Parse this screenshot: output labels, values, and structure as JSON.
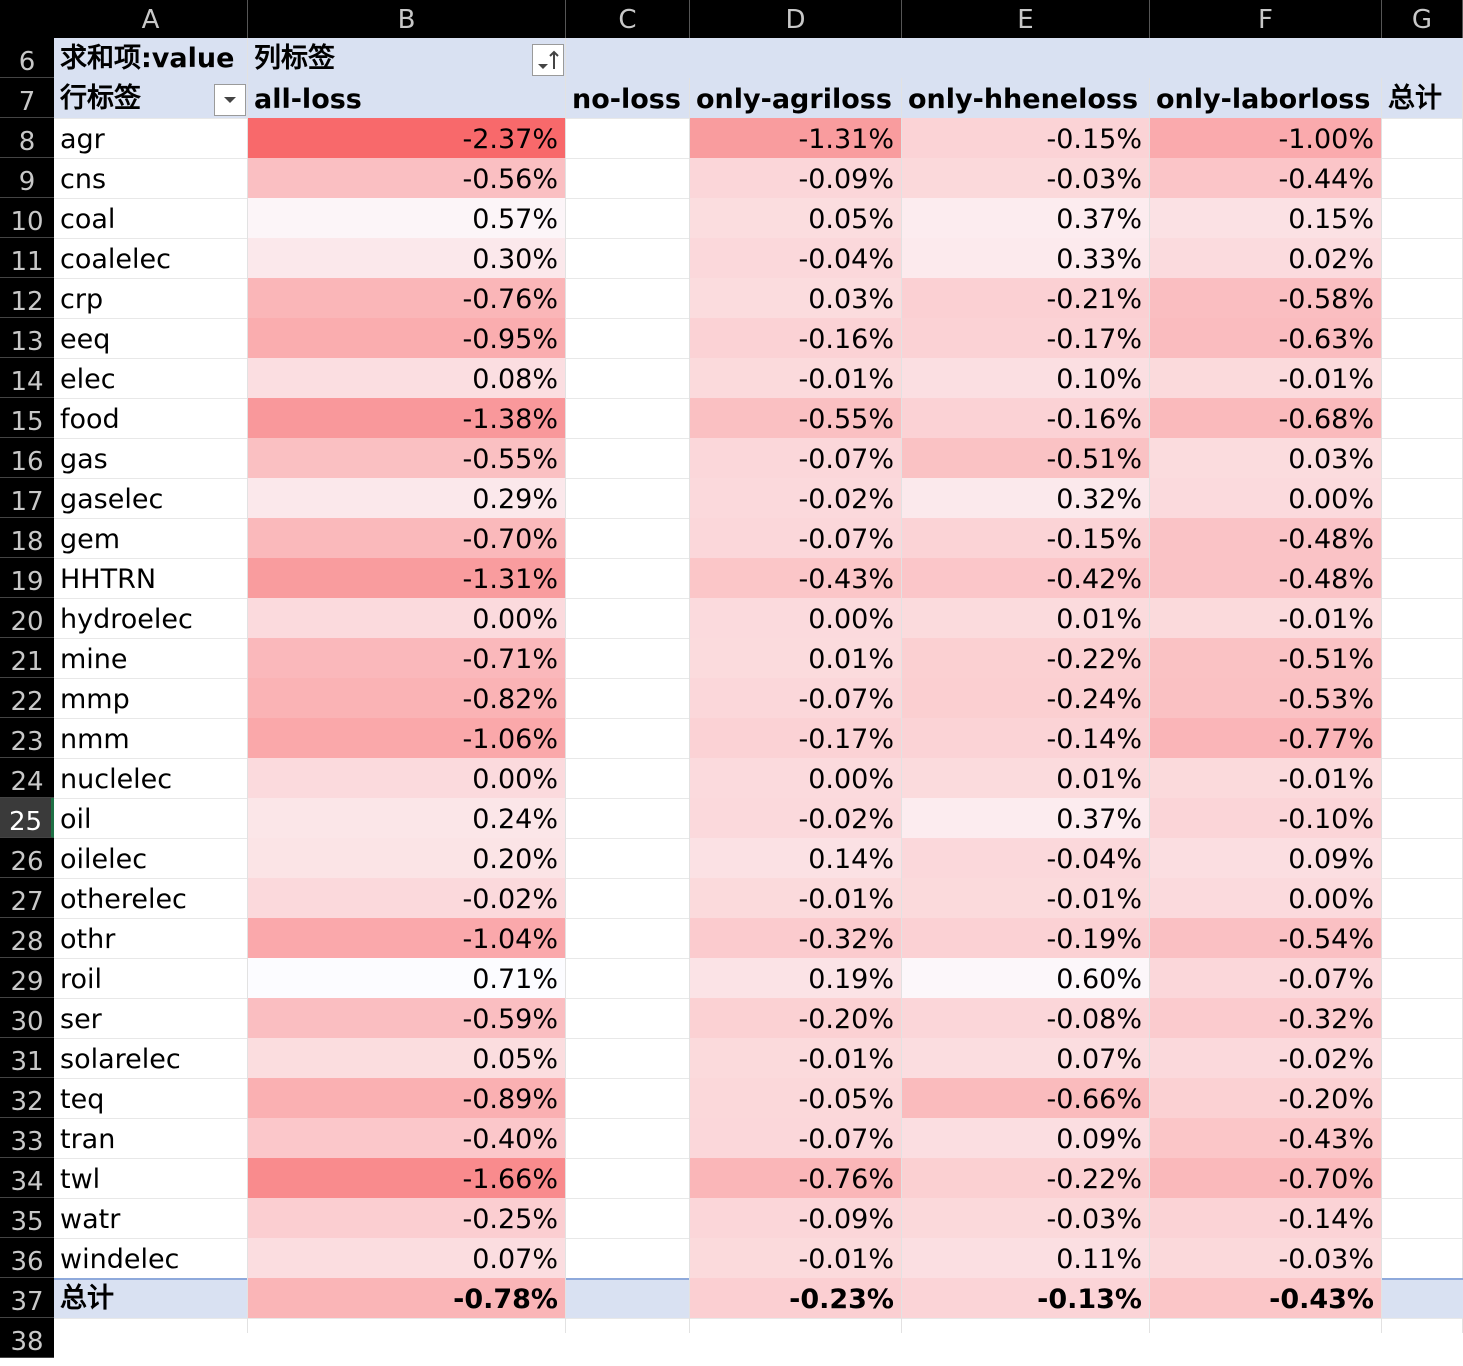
{
  "columns": [
    "A",
    "B",
    "C",
    "D",
    "E",
    "F",
    "G"
  ],
  "row_numbers": [
    6,
    7,
    8,
    9,
    10,
    11,
    12,
    13,
    14,
    15,
    16,
    17,
    18,
    19,
    20,
    21,
    22,
    23,
    24,
    25,
    26,
    27,
    28,
    29,
    30,
    31,
    32,
    33,
    34,
    35,
    36,
    37,
    38
  ],
  "selected_row": 25,
  "pivot": {
    "value_label": "求和项:value",
    "column_label": "列标签",
    "row_label": "行标签",
    "column_headers": [
      "all-loss",
      "no-loss",
      "only-agriloss",
      "only-hheneloss",
      "only-laborloss",
      "总计"
    ],
    "total_label": "总计",
    "rows": [
      {
        "name": "agr",
        "values": [
          "-2.37%",
          "",
          "-1.31%",
          "-0.15%",
          "-1.00%"
        ]
      },
      {
        "name": "cns",
        "values": [
          "-0.56%",
          "",
          "-0.09%",
          "-0.03%",
          "-0.44%"
        ]
      },
      {
        "name": "coal",
        "values": [
          "0.57%",
          "",
          "0.05%",
          "0.37%",
          "0.15%"
        ]
      },
      {
        "name": "coalelec",
        "values": [
          "0.30%",
          "",
          "-0.04%",
          "0.33%",
          "0.02%"
        ]
      },
      {
        "name": "crp",
        "values": [
          "-0.76%",
          "",
          "0.03%",
          "-0.21%",
          "-0.58%"
        ]
      },
      {
        "name": "eeq",
        "values": [
          "-0.95%",
          "",
          "-0.16%",
          "-0.17%",
          "-0.63%"
        ]
      },
      {
        "name": "elec",
        "values": [
          "0.08%",
          "",
          "-0.01%",
          "0.10%",
          "-0.01%"
        ]
      },
      {
        "name": "food",
        "values": [
          "-1.38%",
          "",
          "-0.55%",
          "-0.16%",
          "-0.68%"
        ]
      },
      {
        "name": "gas",
        "values": [
          "-0.55%",
          "",
          "-0.07%",
          "-0.51%",
          "0.03%"
        ]
      },
      {
        "name": "gaselec",
        "values": [
          "0.29%",
          "",
          "-0.02%",
          "0.32%",
          "0.00%"
        ]
      },
      {
        "name": "gem",
        "values": [
          "-0.70%",
          "",
          "-0.07%",
          "-0.15%",
          "-0.48%"
        ]
      },
      {
        "name": "HHTRN",
        "values": [
          "-1.31%",
          "",
          "-0.43%",
          "-0.42%",
          "-0.48%"
        ]
      },
      {
        "name": "hydroelec",
        "values": [
          "0.00%",
          "",
          "0.00%",
          "0.01%",
          "-0.01%"
        ]
      },
      {
        "name": "mine",
        "values": [
          "-0.71%",
          "",
          "0.01%",
          "-0.22%",
          "-0.51%"
        ]
      },
      {
        "name": "mmp",
        "values": [
          "-0.82%",
          "",
          "-0.07%",
          "-0.24%",
          "-0.53%"
        ]
      },
      {
        "name": "nmm",
        "values": [
          "-1.06%",
          "",
          "-0.17%",
          "-0.14%",
          "-0.77%"
        ]
      },
      {
        "name": "nuclelec",
        "values": [
          "0.00%",
          "",
          "0.00%",
          "0.01%",
          "-0.01%"
        ]
      },
      {
        "name": "oil",
        "values": [
          "0.24%",
          "",
          "-0.02%",
          "0.37%",
          "-0.10%"
        ]
      },
      {
        "name": "oilelec",
        "values": [
          "0.20%",
          "",
          "0.14%",
          "-0.04%",
          "0.09%"
        ]
      },
      {
        "name": "otherelec",
        "values": [
          "-0.02%",
          "",
          "-0.01%",
          "-0.01%",
          "0.00%"
        ]
      },
      {
        "name": "othr",
        "values": [
          "-1.04%",
          "",
          "-0.32%",
          "-0.19%",
          "-0.54%"
        ]
      },
      {
        "name": "roil",
        "values": [
          "0.71%",
          "",
          "0.19%",
          "0.60%",
          "-0.07%"
        ]
      },
      {
        "name": "ser",
        "values": [
          "-0.59%",
          "",
          "-0.20%",
          "-0.08%",
          "-0.32%"
        ]
      },
      {
        "name": "solarelec",
        "values": [
          "0.05%",
          "",
          "-0.01%",
          "0.07%",
          "-0.02%"
        ]
      },
      {
        "name": "teq",
        "values": [
          "-0.89%",
          "",
          "-0.05%",
          "-0.66%",
          "-0.20%"
        ]
      },
      {
        "name": "tran",
        "values": [
          "-0.40%",
          "",
          "-0.07%",
          "0.09%",
          "-0.43%"
        ]
      },
      {
        "name": "twl",
        "values": [
          "-1.66%",
          "",
          "-0.76%",
          "-0.22%",
          "-0.70%"
        ]
      },
      {
        "name": "watr",
        "values": [
          "-0.25%",
          "",
          "-0.09%",
          "-0.03%",
          "-0.14%"
        ]
      },
      {
        "name": "windelec",
        "values": [
          "0.07%",
          "",
          "-0.01%",
          "0.11%",
          "-0.03%"
        ]
      }
    ],
    "totals": [
      "-0.78%",
      "",
      "-0.23%",
      "-0.13%",
      "-0.43%"
    ]
  },
  "colors": {
    "header_band": "#d9e1f2",
    "heat_max": "#f8696b",
    "heat_min": "#fcfcff"
  },
  "icons": {
    "column_label_button": "sort-filter-icon",
    "row_label_button": "dropdown-arrow-icon"
  }
}
